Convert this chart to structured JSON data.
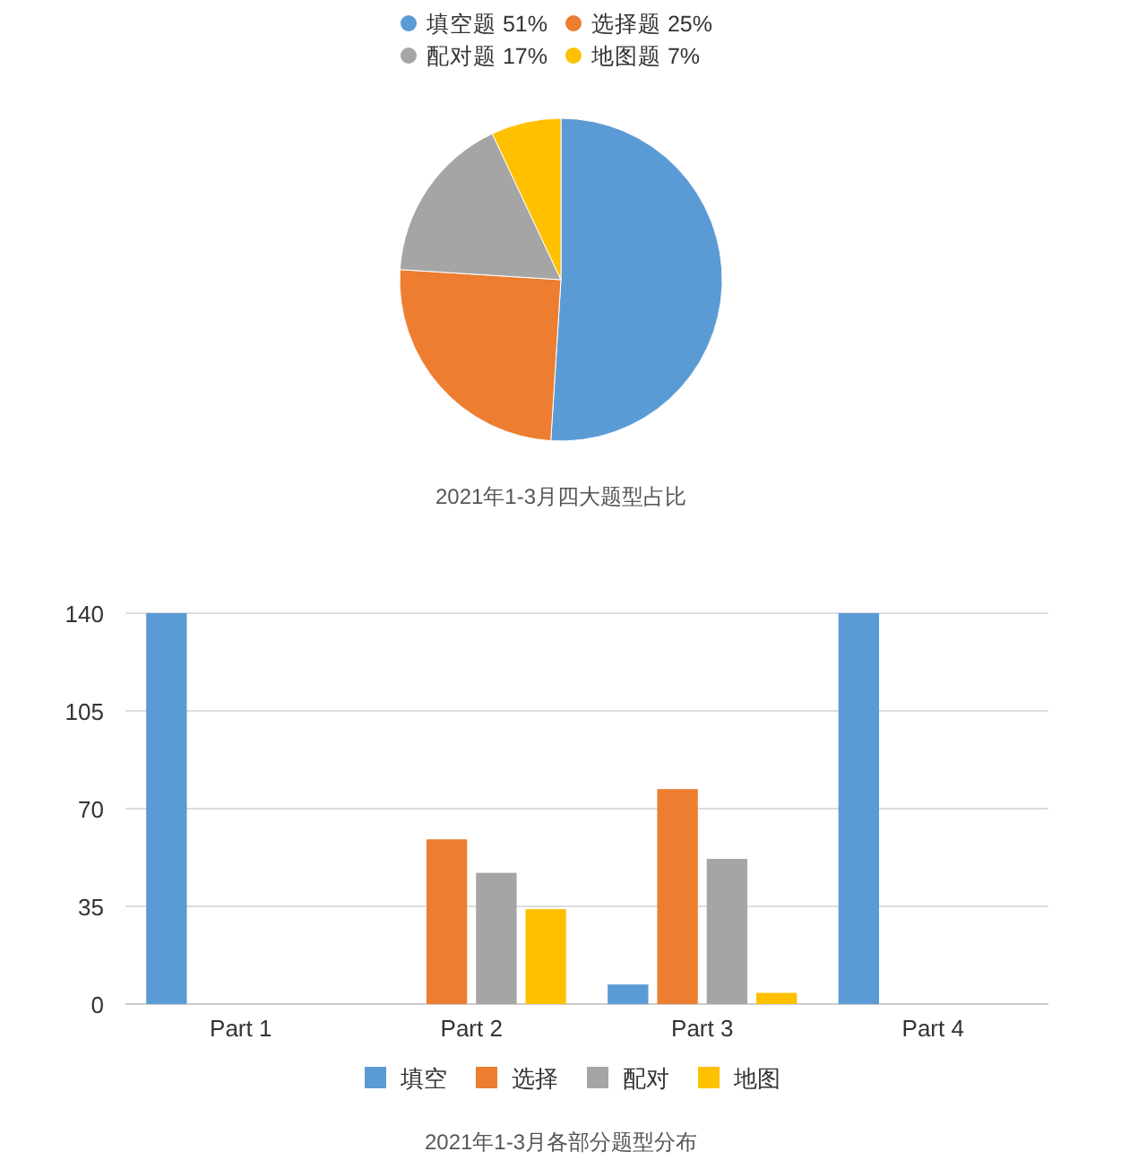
{
  "chart_data": [
    {
      "type": "pie",
      "title": "2021年1-3月四大题型占比",
      "categories": [
        "填空题 51%",
        "选择题 25%",
        "配对题 17%",
        "地图题 7%"
      ],
      "values": [
        51,
        25,
        17,
        7
      ],
      "colors": [
        "#5b9bd5",
        "#ed7d31",
        "#a5a5a5",
        "#ffc000"
      ],
      "legend": "top"
    },
    {
      "type": "bar",
      "title": "2021年1-3月各部分题型分布",
      "categories": [
        "Part 1",
        "Part 2",
        "Part 3",
        "Part 4"
      ],
      "series": [
        {
          "name": "填空",
          "color": "#5b9bd5",
          "values": [
            140,
            0,
            7,
            140
          ]
        },
        {
          "name": "选择",
          "color": "#ed7d31",
          "values": [
            0,
            59,
            77,
            0
          ]
        },
        {
          "name": "配对",
          "color": "#a5a5a5",
          "values": [
            0,
            47,
            52,
            0
          ]
        },
        {
          "name": "地图",
          "color": "#ffc000",
          "values": [
            0,
            34,
            4,
            0
          ]
        }
      ],
      "ylim": [
        0,
        140
      ],
      "yticks": [
        0,
        35,
        70,
        105,
        140
      ],
      "grid": "y",
      "legend": "bottom"
    }
  ]
}
